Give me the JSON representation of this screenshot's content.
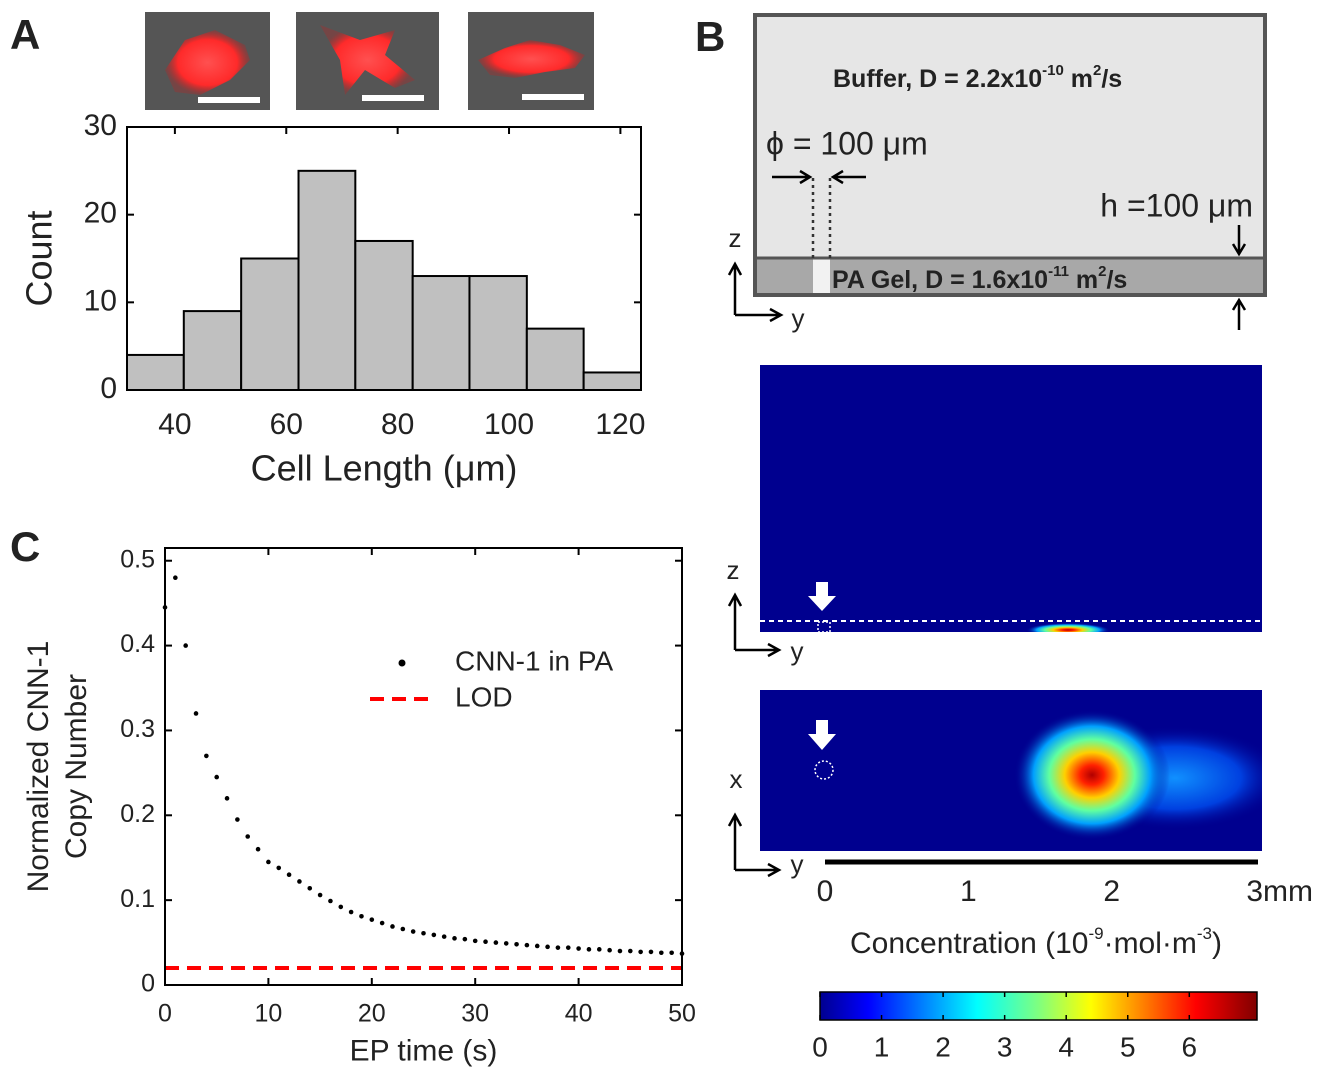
{
  "panel_labels": [
    "A",
    "B",
    "C"
  ],
  "chart_data": [
    {
      "type": "histogram",
      "bins": [
        31.4,
        41.6,
        51.9,
        62.2,
        72.4,
        82.7,
        92.9,
        103.2,
        113.4,
        123.7
      ],
      "values": [
        4,
        9,
        15,
        25,
        17,
        13,
        13,
        7,
        2
      ],
      "color": "#c0c0c0",
      "xlim": [
        31.4,
        123.7
      ],
      "xticks": [
        40,
        60,
        80,
        100,
        120
      ],
      "ylim": [
        0,
        30
      ],
      "yticks": [
        0,
        10,
        20,
        30
      ],
      "xlabel": "Cell Length (μm)",
      "ylabel": "Count"
    },
    {
      "type": "scatter",
      "x": [
        0,
        1,
        2,
        3,
        4,
        5,
        6,
        7,
        8,
        9,
        10,
        11,
        12,
        13,
        14,
        15,
        16,
        17,
        18,
        19,
        20,
        21,
        22,
        23,
        24,
        25,
        26,
        27,
        28,
        29,
        30,
        31,
        32,
        33,
        34,
        35,
        36,
        37,
        38,
        39,
        40,
        41,
        42,
        43,
        44,
        45,
        46,
        47,
        48,
        49,
        50
      ],
      "series": [
        {
          "name": "CNN-1 in PA",
          "color": "#000000",
          "values": [
            0.445,
            0.48,
            0.4,
            0.32,
            0.27,
            0.245,
            0.22,
            0.195,
            0.175,
            0.16,
            0.145,
            0.138,
            0.13,
            0.122,
            0.114,
            0.106,
            0.099,
            0.092,
            0.086,
            0.081,
            0.077,
            0.073,
            0.069,
            0.066,
            0.063,
            0.061,
            0.059,
            0.057,
            0.055,
            0.054,
            0.052,
            0.051,
            0.05,
            0.049,
            0.048,
            0.047,
            0.046,
            0.045,
            0.044,
            0.044,
            0.043,
            0.042,
            0.042,
            0.041,
            0.04,
            0.04,
            0.039,
            0.039,
            0.038,
            0.038,
            0.037
          ]
        }
      ],
      "hline": {
        "name": "LOD",
        "color": "#ff0000",
        "value": 0.02
      },
      "xlim": [
        0,
        50
      ],
      "xticks": [
        0,
        10,
        20,
        30,
        40,
        50
      ],
      "ylim": [
        0,
        0.515
      ],
      "yticks": [
        0,
        0.1,
        0.2,
        0.3,
        0.4,
        0.5
      ],
      "xlabel": "EP time (s)",
      "ylabel": [
        "Normalized CNN-1",
        "Copy Number"
      ]
    }
  ],
  "schematic": {
    "buffer": [
      "Buffer, D = 2.2x10",
      "-10",
      " m",
      "2",
      "/s"
    ],
    "gel": [
      "PA Gel, D = 1.6x10",
      "-11",
      " m",
      "2",
      "/s"
    ],
    "pore": "ϕ = 100 μm",
    "height": "h =100 μm",
    "axes": [
      "z",
      "y",
      "z",
      "y",
      "x",
      "y"
    ]
  },
  "scale": {
    "lim": [
      0,
      3
    ],
    "ticks": [
      0,
      1,
      2,
      {
        "value": 3,
        "label": "3mm"
      }
    ]
  },
  "colorbar": {
    "label": [
      "Concentration (10",
      "-9",
      "·mol·m",
      "-3",
      ")"
    ],
    "lim": [
      0,
      7.1
    ],
    "ticks": [
      0,
      1,
      2,
      3,
      4,
      5,
      6
    ]
  }
}
